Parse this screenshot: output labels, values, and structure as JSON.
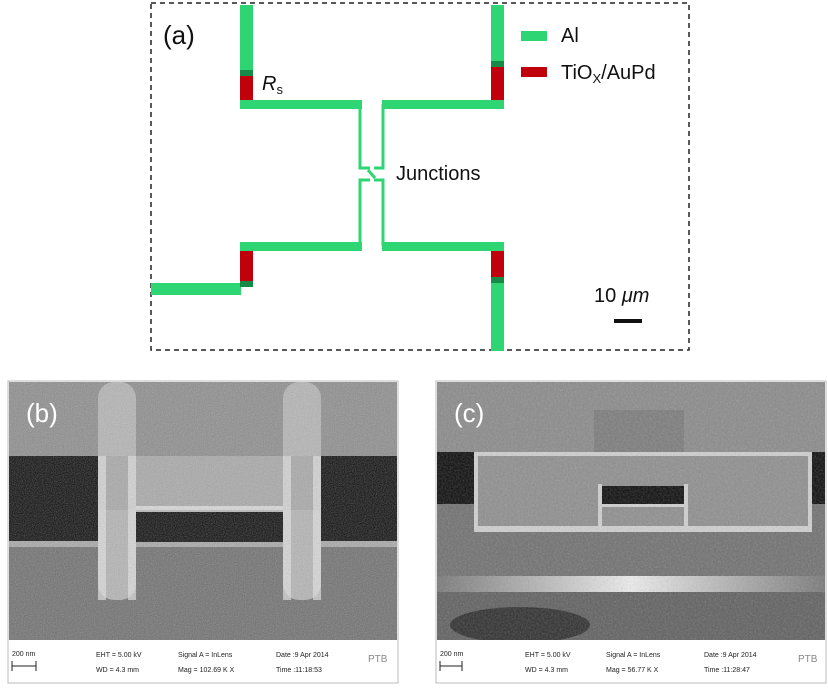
{
  "panel_a": {
    "label": "(a)",
    "legend": [
      {
        "name": "Al",
        "color": "#2ed573"
      },
      {
        "name_main": "TiO",
        "name_sub": "X",
        "name_tail": "/AuPd",
        "color": "#c0000b"
      }
    ],
    "resistor_label_main": "R",
    "resistor_label_sub": "s",
    "junctions_label": "Junctions",
    "scale_bar_label_num": "10 ",
    "scale_bar_label_unit": "μm",
    "colors": {
      "al": "#2ed573",
      "al_dark": "#178a48",
      "tiox": "#c0000b"
    }
  },
  "panel_b": {
    "label": "(b)",
    "scale": "200 nm",
    "eht": "EHT =  5.00 kV",
    "wd": "WD =  4.3 mm",
    "signal": "Signal A = InLens",
    "mag": "Mag = 102.69 K X",
    "date": "Date :9 Apr 2014",
    "time": "Time :11:18:53",
    "logo": "PTB"
  },
  "panel_c": {
    "label": "(c)",
    "scale": "200 nm",
    "eht": "EHT =  5.00 kV",
    "wd": "WD =  4.3 mm",
    "signal": "Signal A = InLens",
    "mag": "Mag =  56.77 K X",
    "date": "Date :9 Apr 2014",
    "time": "Time :11:28:47",
    "logo": "PTB"
  }
}
